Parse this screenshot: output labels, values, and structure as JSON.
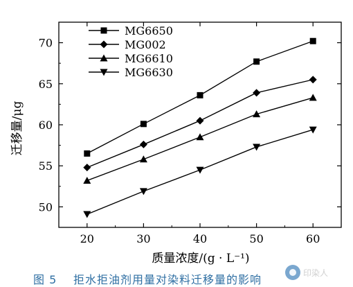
{
  "chart_data": {
    "type": "line",
    "x": [
      20,
      30,
      40,
      50,
      60
    ],
    "xlabel": "质量浓度/(g · L⁻¹)",
    "ylabel": "迁移量/μg",
    "xlim": [
      15,
      65
    ],
    "ylim": [
      47.5,
      72.5
    ],
    "xticks": [
      20,
      30,
      40,
      50,
      60
    ],
    "yticks": [
      50,
      55,
      60,
      65,
      70
    ],
    "legend_position": "top-left",
    "grid": false,
    "series": [
      {
        "name": "MG6650",
        "marker": "square",
        "values": [
          56.5,
          60.1,
          63.6,
          67.7,
          70.2
        ]
      },
      {
        "name": "MG002",
        "marker": "diamond",
        "values": [
          54.8,
          57.6,
          60.5,
          63.9,
          65.5
        ]
      },
      {
        "name": "MG6610",
        "marker": "triangle-up",
        "values": [
          53.2,
          55.8,
          58.5,
          61.3,
          63.3
        ]
      },
      {
        "name": "MG6630",
        "marker": "triangle-down",
        "values": [
          49.1,
          51.9,
          54.5,
          57.3,
          59.4
        ]
      }
    ]
  },
  "caption": {
    "figure_number": "图 5",
    "text": "拒水拒油剂用量对染料迁移量的影响"
  },
  "watermark": {
    "text": "印染人",
    "icon": "wechat-logo-icon"
  },
  "colors": {
    "line": "#000000",
    "caption": "#2f6fa3"
  }
}
